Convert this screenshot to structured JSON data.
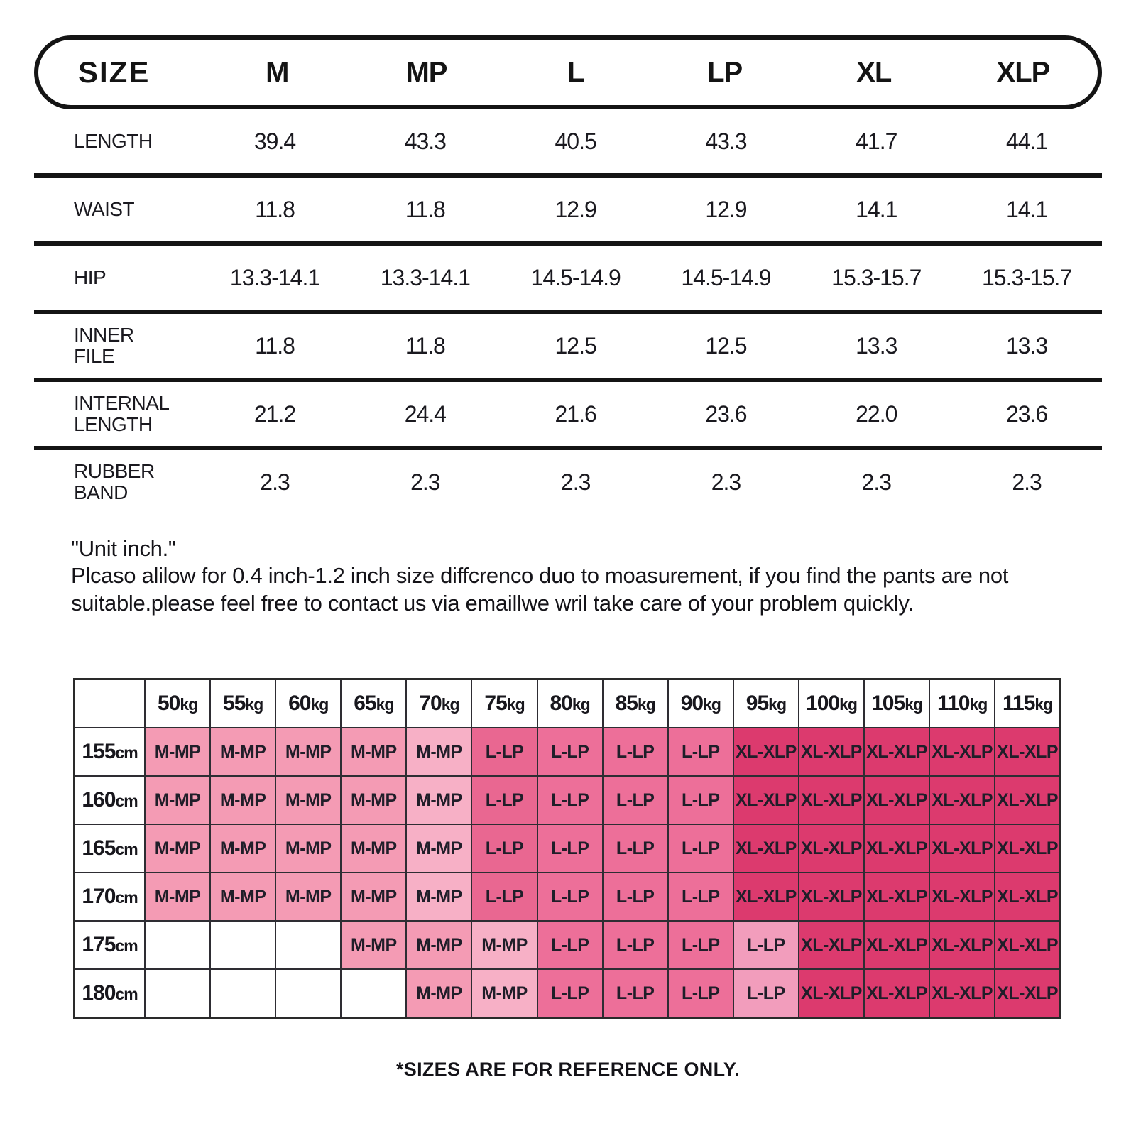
{
  "size_table": {
    "header": [
      "SIZE",
      "M",
      "MP",
      "L",
      "LP",
      "XL",
      "XLP"
    ],
    "rows": [
      {
        "label": "LENGTH",
        "values": [
          "39.4",
          "43.3",
          "40.5",
          "43.3",
          "41.7",
          "44.1"
        ]
      },
      {
        "label": "WAIST",
        "values": [
          "11.8",
          "11.8",
          "12.9",
          "12.9",
          "14.1",
          "14.1"
        ]
      },
      {
        "label": "HIP",
        "values": [
          "13.3-14.1",
          "13.3-14.1",
          "14.5-14.9",
          "14.5-14.9",
          "15.3-15.7",
          "15.3-15.7"
        ]
      },
      {
        "label": "INNER FILE",
        "values": [
          "11.8",
          "11.8",
          "12.5",
          "12.5",
          "13.3",
          "13.3"
        ]
      },
      {
        "label": "INTERNAL LENGTH",
        "values": [
          "21.2",
          "24.4",
          "21.6",
          "23.6",
          "22.0",
          "23.6"
        ]
      },
      {
        "label": "RUBBER BAND",
        "values": [
          "2.3",
          "2.3",
          "2.3",
          "2.3",
          "2.3",
          "2.3"
        ]
      }
    ]
  },
  "notes": {
    "line1": "\"Unit inch.\"",
    "line2": "Plcaso alilow for 0.4 inch-1.2 inch size diffcrenco duo to moasurement, if you find the pants are not suitable.please feel free to contact us via emaillwe wril take care of your problem quickly."
  },
  "fit_matrix": {
    "weights": [
      "50kg",
      "55kg",
      "60kg",
      "65kg",
      "70kg",
      "75kg",
      "80kg",
      "85kg",
      "90kg",
      "95kg",
      "100kg",
      "105kg",
      "110kg",
      "115kg"
    ],
    "rows": [
      {
        "height": "155cm",
        "cells": [
          "M-MP",
          "M-MP",
          "M-MP",
          "M-MP",
          "M-MP",
          "L-LP",
          "L-LP",
          "L-LP",
          "L-LP",
          "XL-XLP",
          "XL-XLP",
          "XL-XLP",
          "XL-XLP",
          "XL-XLP"
        ]
      },
      {
        "height": "160cm",
        "cells": [
          "M-MP",
          "M-MP",
          "M-MP",
          "M-MP",
          "M-MP",
          "L-LP",
          "L-LP",
          "L-LP",
          "L-LP",
          "XL-XLP",
          "XL-XLP",
          "XL-XLP",
          "XL-XLP",
          "XL-XLP"
        ]
      },
      {
        "height": "165cm",
        "cells": [
          "M-MP",
          "M-MP",
          "M-MP",
          "M-MP",
          "M-MP",
          "L-LP",
          "L-LP",
          "L-LP",
          "L-LP",
          "XL-XLP",
          "XL-XLP",
          "XL-XLP",
          "XL-XLP",
          "XL-XLP"
        ]
      },
      {
        "height": "170cm",
        "cells": [
          "M-MP",
          "M-MP",
          "M-MP",
          "M-MP",
          "M-MP",
          "L-LP",
          "L-LP",
          "L-LP",
          "L-LP",
          "XL-XLP",
          "XL-XLP",
          "XL-XLP",
          "XL-XLP",
          "XL-XLP"
        ]
      },
      {
        "height": "175cm",
        "cells": [
          "",
          "",
          "",
          "M-MP",
          "M-MP",
          "M-MP",
          "L-LP",
          "L-LP",
          "L-LP",
          "L-LP",
          "XL-XLP",
          "XL-XLP",
          "XL-XLP",
          "XL-XLP"
        ]
      },
      {
        "height": "180cm",
        "cells": [
          "",
          "",
          "",
          "",
          "M-MP",
          "M-MP",
          "L-LP",
          "L-LP",
          "L-LP",
          "L-LP",
          "XL-XLP",
          "XL-XLP",
          "XL-XLP",
          "XL-XLP"
        ]
      }
    ],
    "cell_overrides": [
      {
        "row": 0,
        "col": 4,
        "tone": "m_mp_light"
      },
      {
        "row": 1,
        "col": 4,
        "tone": "m_mp_light"
      },
      {
        "row": 2,
        "col": 4,
        "tone": "m_mp_light"
      },
      {
        "row": 3,
        "col": 4,
        "tone": "m_mp_light"
      },
      {
        "row": 0,
        "col": 5,
        "tone": "l_lp_dark"
      },
      {
        "row": 1,
        "col": 5,
        "tone": "l_lp_dark"
      },
      {
        "row": 2,
        "col": 5,
        "tone": "l_lp_dark"
      },
      {
        "row": 3,
        "col": 5,
        "tone": "l_lp_dark"
      },
      {
        "row": 4,
        "col": 5,
        "tone": "m_mp_light"
      },
      {
        "row": 5,
        "col": 5,
        "tone": "m_mp_light"
      },
      {
        "row": 4,
        "col": 9,
        "tone": "l_lp_light"
      },
      {
        "row": 5,
        "col": 9,
        "tone": "l_lp_light"
      }
    ]
  },
  "footer": {
    "text": "*SIZES ARE FOR REFERENCE ONLY."
  },
  "colors": {
    "m_mp": "#F49BB4",
    "m_mp_light": "#F7B0C6",
    "l_lp": "#ED6F99",
    "l_lp_dark": "#E96791",
    "l_lp_light": "#F29DBC",
    "xl_xlp": "#DC3A6E",
    "blank": "#FFFFFF",
    "border": "#141414",
    "grid_line": "#2E2D33",
    "ink": "#17161D"
  }
}
